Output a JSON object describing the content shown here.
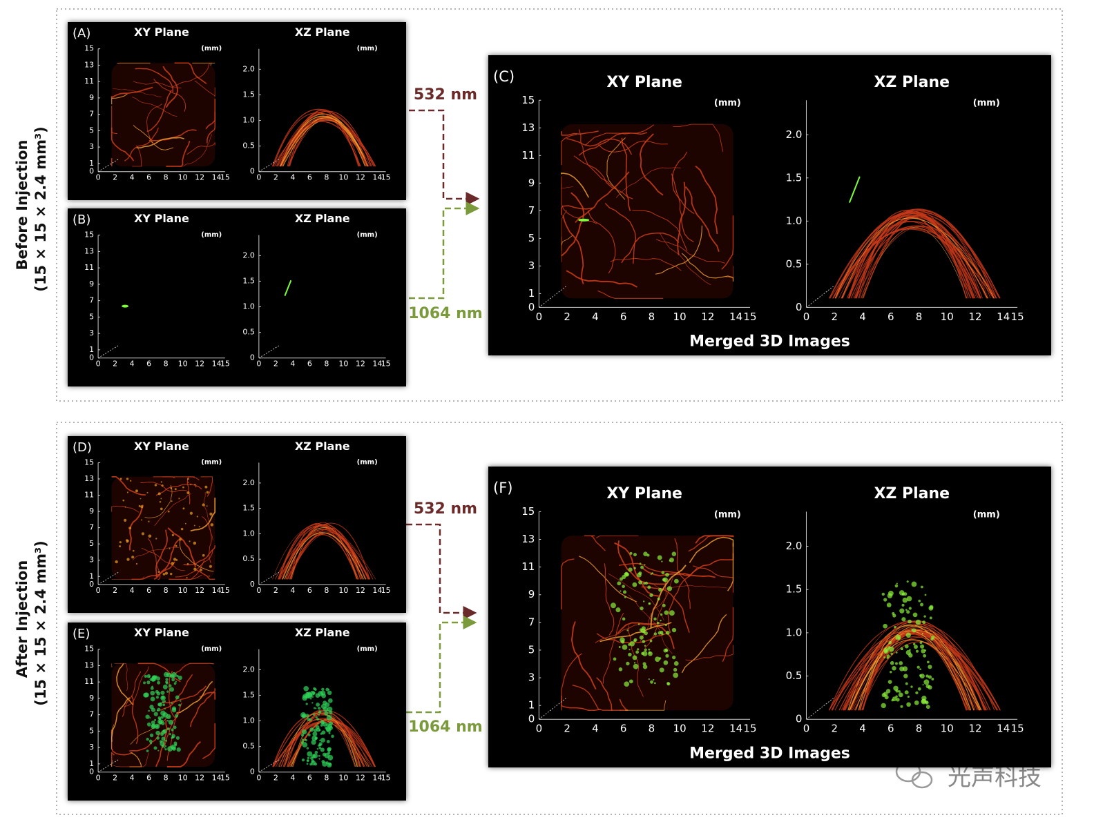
{
  "sections": [
    {
      "title": "Before Injection",
      "subtitle": "(15 × 15 × 2.4 mm³)",
      "wavelengths": [
        "532 nm",
        "1064 nm"
      ]
    },
    {
      "title": "After Injection",
      "subtitle": "(15 × 15 × 2.4 mm³)",
      "wavelengths": [
        "532 nm",
        "1064 nm"
      ]
    }
  ],
  "panels": [
    {
      "label": "(A)",
      "xy_title": "XY Plane",
      "xz_title": "XZ Plane",
      "unit": "(mm)"
    },
    {
      "label": "(B)",
      "xy_title": "XY Plane",
      "xz_title": "XZ Plane",
      "unit": "(mm)"
    },
    {
      "label": "(C)",
      "xy_title": "XY Plane",
      "xz_title": "XZ Plane",
      "unit": "(mm)",
      "caption": "Merged 3D Images"
    },
    {
      "label": "(D)",
      "xy_title": "XY Plane",
      "xz_title": "XZ Plane",
      "unit": "(mm)"
    },
    {
      "label": "(E)",
      "xy_title": "XY Plane",
      "xz_title": "XZ Plane",
      "unit": "(mm)"
    },
    {
      "label": "(F)",
      "xy_title": "XY Plane",
      "xz_title": "XZ Plane",
      "unit": "(mm)",
      "caption": "Merged 3D Images"
    }
  ],
  "axes": {
    "xy_yticks": [
      "15",
      "13",
      "11",
      "9",
      "7",
      "5",
      "3",
      "1",
      "0"
    ],
    "xy_xticks": [
      "0",
      "2",
      "4",
      "6",
      "8",
      "10",
      "12",
      "14",
      "15"
    ],
    "xz_yticks": [
      "2.0",
      "1.5",
      "1.0",
      "0.5",
      "0"
    ],
    "xz_xticks": [
      "0",
      "2",
      "4",
      "6",
      "8",
      "10",
      "12",
      "14",
      "15"
    ]
  },
  "watermark": "光声科技"
}
